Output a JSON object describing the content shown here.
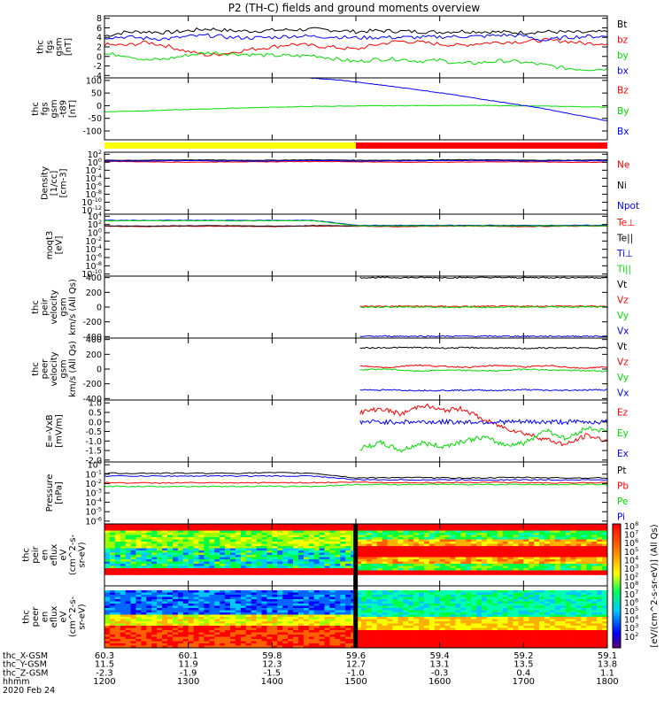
{
  "title": "P2 (TH-C) fields and ground moments overview",
  "colors": {
    "black": "#000000",
    "red": "#ff0000",
    "green": "#00dd00",
    "blue": "#0000ff",
    "yellow": "#ffff00",
    "bar_red": "#ff0000"
  },
  "mode_bar": {
    "segments": [
      {
        "from": 1200,
        "to": 1500,
        "color": "yellow"
      },
      {
        "from": 1500,
        "to": 1800,
        "color": "red"
      }
    ]
  },
  "chart_data": [
    {
      "type": "line",
      "id": "fgs",
      "ylabel": [
        "thc",
        "fgs",
        "gsm",
        "[nT]"
      ],
      "yticks": [
        "8",
        "6",
        "4",
        "2",
        "0",
        "-2",
        "-4"
      ],
      "ylim": [
        -4.5,
        8.5
      ],
      "series": [
        {
          "name": "Bt",
          "color": "black",
          "values": [
            4.3,
            5.1,
            5.2,
            5.0,
            5.4,
            5.8,
            5.4,
            5.3,
            5.5,
            5.6,
            5.7,
            5.5,
            5.2,
            5.4,
            5.3,
            5.2,
            5.1,
            5.3,
            5.2,
            5.1,
            5.0,
            5.2,
            5.1,
            5.0,
            5.2
          ]
        },
        {
          "name": "bz",
          "color": "red",
          "values": [
            2.5,
            2.3,
            3.0,
            2.2,
            1.0,
            0.2,
            0.8,
            1.5,
            2.0,
            2.6,
            2.2,
            1.9,
            1.5,
            2.5,
            3.2,
            3.0,
            2.6,
            2.3,
            2.8,
            3.0,
            3.1,
            3.4,
            3.2,
            2.7,
            2.8
          ]
        },
        {
          "name": "by",
          "color": "green",
          "values": [
            0.5,
            0.3,
            -0.8,
            -0.5,
            0.3,
            0.8,
            0.6,
            0.4,
            0.2,
            0.1,
            0.2,
            -0.5,
            -1.1,
            -0.6,
            -0.5,
            -1.0,
            -0.8,
            -1.5,
            -1.3,
            -0.9,
            -1.2,
            -1.8,
            -2.5,
            -2.7,
            -2.6
          ]
        },
        {
          "name": "bx",
          "color": "blue",
          "values": [
            4.0,
            4.1,
            3.8,
            3.7,
            4.2,
            4.4,
            4.0,
            3.9,
            4.0,
            4.3,
            4.2,
            4.1,
            3.9,
            4.0,
            4.0,
            4.0,
            4.1,
            4.2,
            4.2,
            4.5,
            4.3,
            3.3,
            4.0,
            4.2,
            4.2
          ]
        }
      ]
    },
    {
      "type": "line",
      "id": "fgs_t89",
      "ylabel": [
        "thc",
        "fgs",
        "gsm",
        "-t89",
        "[nT]"
      ],
      "yticks": [
        "100",
        "50",
        "0",
        "-50",
        "-100"
      ],
      "ylim": [
        -135,
        110
      ],
      "series": [
        {
          "name": "Bz",
          "color": "red",
          "values": []
        },
        {
          "name": "By",
          "color": "green",
          "values": [
            -24,
            -20,
            -15,
            -10,
            -6,
            -3,
            -1,
            0,
            1,
            1,
            -1,
            -3,
            -6
          ]
        },
        {
          "name": "Bx",
          "color": "blue",
          "values": [
            110,
            100,
            84,
            68,
            50,
            30,
            10,
            -10,
            -35,
            -60
          ]
        }
      ]
    },
    {
      "type": "line",
      "id": "density",
      "ylabel": [
        "Density",
        "[1/cc]",
        "[cm-3]"
      ],
      "yticks": [
        "10^2",
        "10^0",
        "10^-2",
        "10^-4",
        "10^-6",
        "10^-8",
        "10^-10",
        "10^-12"
      ],
      "ylim": [
        -13,
        2.5
      ],
      "log": true,
      "series": [
        {
          "name": "Ne",
          "color": "red",
          "values": [
            0.2,
            0.1,
            0.0,
            0.1,
            0.1,
            0.2,
            0.1,
            0.0,
            0.0,
            0.1,
            0.1,
            0.0,
            0.0
          ]
        },
        {
          "name": "Ni",
          "color": "black",
          "values": [
            0.5,
            0.5,
            0.6,
            0.5,
            0.5,
            0.6,
            0.5,
            0.5,
            0.6,
            0.6,
            0.5,
            0.5,
            0.6
          ]
        },
        {
          "name": "Npot",
          "color": "blue",
          "values": [
            0.3,
            0.3,
            0.4,
            0.3,
            0.3,
            0.4,
            0.3,
            0.3,
            0.4,
            0.4,
            0.3,
            0.3,
            0.4
          ]
        }
      ]
    },
    {
      "type": "line",
      "id": "moqt3",
      "ylabel": [
        "moqt3",
        "[eV]"
      ],
      "yticks": [
        "10^4",
        "10^2",
        "10^0",
        "10^-2",
        "10^-4",
        "10^-6",
        "10^-8",
        "10^-10"
      ],
      "ylim": [
        -10.5,
        4.5
      ],
      "log": true,
      "series": [
        {
          "name": "Te⊥",
          "color": "red",
          "values": [
            1.6,
            1.5,
            1.6,
            1.6,
            1.5,
            1.6,
            1.6,
            1.5,
            1.6,
            1.6,
            1.5,
            1.6,
            1.6
          ]
        },
        {
          "name": "Te||",
          "color": "black",
          "values": [
            1.7,
            1.6,
            1.7,
            1.7,
            1.6,
            1.7,
            1.7,
            1.6,
            1.7,
            1.7,
            1.6,
            1.7,
            1.7
          ]
        },
        {
          "name": "Ti⊥",
          "color": "blue",
          "values": [
            3.0,
            3.0,
            3.0,
            3.0,
            3.0,
            3.0,
            1.8,
            1.8,
            1.8,
            1.8,
            1.8,
            1.8,
            1.8
          ]
        },
        {
          "name": "Ti||",
          "color": "green",
          "values": [
            2.9,
            2.9,
            2.9,
            2.9,
            2.9,
            2.9,
            1.7,
            1.7,
            1.7,
            1.7,
            1.7,
            1.7,
            1.7
          ]
        }
      ]
    },
    {
      "type": "line",
      "id": "peir_vel",
      "ylabel": [
        "thc",
        "peir",
        "velocity",
        "gsm",
        "km/s (All Qs)"
      ],
      "yticks": [
        "400",
        "200",
        "0",
        "-200",
        "-400"
      ],
      "ylim": [
        -420,
        420
      ],
      "series": [
        {
          "name": "Vt",
          "color": "black",
          "values": [
            400,
            400,
            400,
            400,
            400,
            400
          ]
        },
        {
          "name": "Vz",
          "color": "red",
          "values": [
            10,
            12,
            8,
            10,
            14,
            10
          ]
        },
        {
          "name": "Vy",
          "color": "green",
          "values": [
            0,
            2,
            -2,
            0,
            4,
            0
          ]
        },
        {
          "name": "Vx",
          "color": "blue",
          "values": [
            -395,
            -395,
            -395,
            -395,
            -395,
            -395
          ]
        }
      ]
    },
    {
      "type": "line",
      "id": "peer_vel",
      "ylabel": [
        "thc",
        "peer",
        "velocity",
        "gsm",
        "km/s (All Qs)"
      ],
      "yticks": [
        "400",
        "200",
        "0",
        "-200",
        "-400"
      ],
      "ylim": [
        -420,
        420
      ],
      "series": [
        {
          "name": "Vt",
          "color": "black",
          "values": [
            285,
            290,
            292,
            285,
            290,
            285,
            280,
            288,
            285,
            290
          ]
        },
        {
          "name": "Vz",
          "color": "red",
          "values": [
            40,
            20,
            55,
            35,
            25,
            50,
            30,
            45,
            10,
            30
          ]
        },
        {
          "name": "Vy",
          "color": "green",
          "values": [
            -10,
            0,
            -30,
            -15,
            -20,
            -25,
            0,
            -15,
            -20,
            -30
          ]
        },
        {
          "name": "Vx",
          "color": "blue",
          "values": [
            -280,
            -285,
            -290,
            -290,
            -285,
            -290,
            -280,
            -290,
            -285,
            -280
          ]
        }
      ]
    },
    {
      "type": "line",
      "id": "efield",
      "ylabel": [
        "E=-VxB",
        "[mV/m]"
      ],
      "yticks": [
        "1.0",
        "0.5",
        "0.0",
        "-0.5",
        "-1.0",
        "-1.5",
        "-2.0"
      ],
      "ylim": [
        -2.1,
        1.15
      ],
      "series": [
        {
          "name": "Ez",
          "color": "red",
          "values": [
            0.5,
            0.7,
            0.4,
            0.9,
            0.6,
            0.7,
            0.1,
            -0.3,
            -0.6,
            -0.9,
            -1.2,
            -0.7,
            -1.0
          ]
        },
        {
          "name": "Ey",
          "color": "green",
          "values": [
            -1.4,
            -1.1,
            -1.5,
            -1.1,
            -1.3,
            -1.0,
            -0.8,
            -1.2,
            -1.1,
            -0.4,
            -0.9,
            -0.3,
            -0.5
          ]
        },
        {
          "name": "Ex",
          "color": "blue",
          "values": [
            0.0,
            0.0,
            0.0,
            0.0,
            0.0,
            0.0,
            0.0,
            0.0,
            0.0,
            0.0,
            0.0,
            0.0,
            0.0
          ]
        }
      ]
    },
    {
      "type": "line",
      "id": "pressure",
      "ylabel": [
        "Pressure",
        "[nPa]"
      ],
      "yticks": [
        "10^0",
        "10^-1",
        "10^-2",
        "10^-3",
        "10^-4",
        "10^-5",
        "10^-6"
      ],
      "ylim": [
        -6.3,
        0.3
      ],
      "log": true,
      "series": [
        {
          "name": "Pt",
          "color": "black",
          "values": [
            -0.9,
            -0.9,
            -0.9,
            -0.9,
            -0.85,
            -0.9,
            -1.4,
            -1.35,
            -1.4,
            -1.4,
            -1.35,
            -1.4,
            -1.4
          ]
        },
        {
          "name": "Pb",
          "color": "red",
          "values": [
            -1.9,
            -1.95,
            -1.9,
            -1.95,
            -1.9,
            -1.9,
            -1.85,
            -1.9,
            -1.9,
            -1.85,
            -1.9,
            -1.95,
            -1.9
          ]
        },
        {
          "name": "Pe",
          "color": "green",
          "values": [
            -2.3,
            -2.3,
            -2.3,
            -2.3,
            -2.3,
            -2.3,
            -2.1,
            -2.1,
            -2.1,
            -2.1,
            -2.1,
            -2.1,
            -2.1
          ]
        },
        {
          "name": "Pi",
          "color": "blue",
          "values": [
            -1.2,
            -1.2,
            -1.2,
            -1.2,
            -1.2,
            -1.2,
            -1.6,
            -1.6,
            -1.6,
            -1.6,
            -1.6,
            -1.6,
            -1.6
          ]
        }
      ]
    },
    {
      "type": "heatmap",
      "id": "peir_en",
      "ylabel": [
        "thc",
        "peir",
        "en",
        "eflux",
        "eV",
        "(cm^2-s-",
        "sr-eV)"
      ],
      "yticks": [
        "10000",
        "1000",
        "100",
        "10"
      ]
    },
    {
      "type": "heatmap",
      "id": "peer_en",
      "ylabel": [
        "thc",
        "peer",
        "en",
        "eflux",
        "eV",
        "(cm^2-s-",
        "sr-eV)"
      ],
      "yticks": [
        "10000",
        "1000",
        "100",
        "10"
      ]
    }
  ],
  "colorbar": {
    "ticks": [
      "10^8",
      "10^7",
      "10^6",
      "10^5",
      "10^4",
      "10^3",
      "10^2",
      "10^8",
      "10^7",
      "10^6",
      "10^5",
      "10^4",
      "10^3",
      "10^2"
    ],
    "label": "[eV/(cm^2-s-sr-eV)] (All Qs)"
  },
  "xaxis": {
    "rows": [
      {
        "label": "thc_X-GSM",
        "values": [
          "60.3",
          "60.1",
          "59.8",
          "59.6",
          "59.4",
          "59.2",
          "59.1"
        ]
      },
      {
        "label": "thc_Y-GSM",
        "values": [
          "11.5",
          "11.9",
          "12.3",
          "12.7",
          "13.1",
          "13.5",
          "13.8"
        ]
      },
      {
        "label": "thc_Z-GSM",
        "values": [
          "-2.3",
          "-1.9",
          "-1.5",
          "-1.0",
          "-0.3",
          "0.4",
          "1.1"
        ]
      },
      {
        "label": "hhmm",
        "values": [
          "1200",
          "1300",
          "1400",
          "1500",
          "1600",
          "1700",
          "1800"
        ]
      }
    ],
    "date": "2020 Feb 24"
  }
}
